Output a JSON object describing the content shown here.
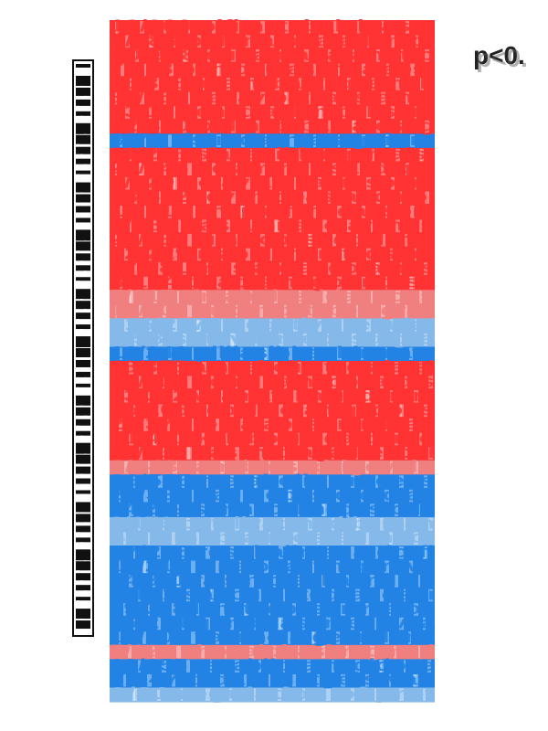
{
  "chart_data": {
    "type": "heatmap",
    "title": "",
    "xlabel": "",
    "ylabel": "",
    "pvalue_label": "p<0.",
    "rows": [
      {
        "label": "18/360 pifimatabalab asst",
        "value": 0.92
      },
      {
        "label": "9/088 pilfanatabaladamgl",
        "value": 0.95
      },
      {
        "label": "20/318 elicaldagalanatib",
        "value": 0.97
      },
      {
        "label": "7/158 pumodulasonbalabst",
        "value": 0.94
      },
      {
        "label": "25/388 asamabastagsamdlt",
        "value": 0.96
      },
      {
        "label": "30/268 dabayipatbagstamib",
        "value": 0.98
      },
      {
        "label": "13/198 enagialilampabsom",
        "value": 0.93
      },
      {
        "label": "22/390 ofilmatobaxlatesag",
        "value": 0.91
      },
      {
        "label": "3/72 dsliadarmatagsiom",
        "value": -0.9
      },
      {
        "label": "11/248 slavaniblongamaist",
        "value": 0.95
      },
      {
        "label": "27/345 polaminalasasdiqlb",
        "value": 0.94
      },
      {
        "label": "6/129 bolavlamitagrasomb",
        "value": 0.92
      },
      {
        "label": "18/302 fevlimobastagdaloi",
        "value": 0.95
      },
      {
        "label": "14/216 onapalifamidagsoin",
        "value": 0.96
      },
      {
        "label": "9/188 daslamitabolarimgs",
        "value": 0.93
      },
      {
        "label": "21/333 gimalobastigdalamv",
        "value": 0.92
      },
      {
        "label": "12/229 isabolamiratagsdol",
        "value": 0.94
      },
      {
        "label": "17/281 moslabitagdoramifs",
        "value": 0.91
      },
      {
        "label": "8/154 talabismagodiforsa",
        "value": 0.9
      },
      {
        "label": "5/117 rimabolastidagnoxs",
        "value": 0.6
      },
      {
        "label": "10/201 lasomicatabelogras",
        "value": 0.55
      },
      {
        "label": "216/2077 negative regulat",
        "value": -0.5
      },
      {
        "label": "4/98 sotavilamebosdigra",
        "value": -0.55
      },
      {
        "label": "13/243 pilllasibbaoldmnate",
        "value": -0.95
      },
      {
        "label": "28/375 ampabolimtagsdarsl",
        "value": 0.93
      },
      {
        "label": "19/307 nobalitamegosardfs",
        "value": 0.97
      },
      {
        "label": "23/352 vilamatobasigdarcm",
        "value": 0.96
      },
      {
        "label": "15/266 rebalisotamgadorls",
        "value": 0.94
      },
      {
        "label": "26/370 iomatabasdigrelvan",
        "value": 0.95
      },
      {
        "label": "31/401 kelabosimgatdarifo",
        "value": 0.92
      },
      {
        "label": "11/233 baslimotagadrevosl",
        "value": 0.9
      },
      {
        "label": "6/143 tamiblosadrigevaln",
        "value": 0.6
      },
      {
        "label": "36/555 metabolic process",
        "value": -0.92
      },
      {
        "label": "20/336 galimobasterdiglav",
        "value": -0.9
      },
      {
        "label": "14/259 sorinabalmegastodil",
        "value": -0.88
      },
      {
        "label": "9/176 potalivagmodibersan",
        "value": -0.55
      },
      {
        "label": "4/96 mebraligostadinvol",
        "value": -0.5
      },
      {
        "label": "17/296 resobalimagatdorfi",
        "value": -0.9
      },
      {
        "label": "12/219 dinalobastimgerovs",
        "value": -0.93
      },
      {
        "label": "24/361 falsimotagbadrelion",
        "value": -0.92
      },
      {
        "label": "8/161 sabolimategradosvi",
        "value": -0.94
      },
      {
        "label": "29/388 limatogbasdiervalos",
        "value": -0.9
      },
      {
        "label": "16/274 gorabilastimedovsa",
        "value": -0.92
      },
      {
        "label": "10/208 vasimolatgebridona",
        "value": -0.91
      },
      {
        "label": "5/121 chonalobasitragmed",
        "value": 0.5
      },
      {
        "label": "13/255 tenabiloramsgidove",
        "value": -0.9
      },
      {
        "label": "7/147 bidamolatgersivan",
        "value": -0.88
      },
      {
        "label": "3/81 regulation of prot",
        "value": -0.6
      }
    ],
    "colors": {
      "strong_positive": "#ff3333",
      "weak_positive": "#f08080",
      "weak_negative": "#85b9ea",
      "strong_negative": "#2283e5",
      "neutral": "#ffffff",
      "label_ink": "#111111"
    },
    "legend": "left"
  }
}
